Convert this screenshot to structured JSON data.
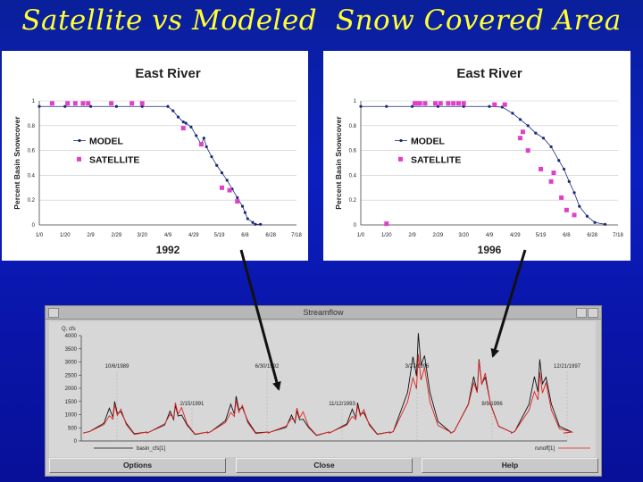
{
  "slide": {
    "title": "Satellite vs Modeled  Snow Covered Area",
    "colors": {
      "background": "#0b1fc0",
      "title": "#ffff33",
      "model": "#1a2a7a",
      "satellite": "#e040c8",
      "flow_observed": "#111111",
      "flow_model": "#e02020"
    }
  },
  "chart_data": [
    {
      "type": "scatter",
      "title": "East River",
      "xlabel": "1992",
      "ylabel": "Percent Basin Snowcover",
      "ylim": [
        0,
        1
      ],
      "y_ticks": [
        "0",
        "0.2",
        "0.4",
        "0.6",
        "0.8",
        "1"
      ],
      "x_ticks": [
        "1/0",
        "1/20",
        "2/9",
        "2/29",
        "3/20",
        "4/9",
        "4/29",
        "5/19",
        "6/8",
        "6/28",
        "7/18"
      ],
      "xlim_days": [
        0,
        200
      ],
      "grid": true,
      "legend": "left-middle",
      "series": [
        {
          "name": "MODEL",
          "marker": "dot",
          "x": [
            0,
            20,
            40,
            60,
            80,
            100,
            104,
            108,
            112,
            114,
            118,
            122,
            126,
            128,
            130,
            134,
            138,
            142,
            146,
            150,
            154,
            158,
            160,
            162,
            166,
            168,
            172
          ],
          "y": [
            0.955,
            0.955,
            0.955,
            0.955,
            0.955,
            0.955,
            0.92,
            0.87,
            0.83,
            0.82,
            0.79,
            0.72,
            0.65,
            0.7,
            0.63,
            0.55,
            0.48,
            0.42,
            0.36,
            0.29,
            0.22,
            0.15,
            0.1,
            0.05,
            0.02,
            0.005,
            0.005
          ]
        },
        {
          "name": "SATELLITE",
          "marker": "square",
          "x": [
            10,
            22,
            28,
            34,
            38,
            56,
            72,
            80,
            112,
            126,
            142,
            148,
            154
          ],
          "y": [
            0.98,
            0.98,
            0.98,
            0.98,
            0.98,
            0.98,
            0.98,
            0.98,
            0.78,
            0.65,
            0.3,
            0.28,
            0.19
          ]
        }
      ]
    },
    {
      "type": "scatter",
      "title": "East River",
      "xlabel": "1996",
      "ylabel": "Percent Basin Snowcover",
      "ylim": [
        0,
        1
      ],
      "y_ticks": [
        "0",
        "0.2",
        "0.4",
        "0.6",
        "0.8",
        "1"
      ],
      "x_ticks": [
        "1/0",
        "1/20",
        "2/9",
        "2/29",
        "3/20",
        "4/9",
        "4/29",
        "5/19",
        "6/8",
        "6/28",
        "7/18"
      ],
      "xlim_days": [
        0,
        200
      ],
      "grid": true,
      "legend": "left-middle",
      "series": [
        {
          "name": "MODEL",
          "marker": "dot",
          "x": [
            0,
            20,
            40,
            60,
            80,
            100,
            110,
            118,
            124,
            130,
            136,
            142,
            148,
            154,
            158,
            162,
            166,
            170,
            176,
            182,
            190
          ],
          "y": [
            0.955,
            0.955,
            0.955,
            0.955,
            0.955,
            0.955,
            0.95,
            0.9,
            0.85,
            0.8,
            0.74,
            0.7,
            0.63,
            0.52,
            0.45,
            0.35,
            0.26,
            0.15,
            0.07,
            0.02,
            0.005
          ]
        },
        {
          "name": "SATELLITE",
          "marker": "square",
          "x": [
            20,
            42,
            44,
            46,
            50,
            58,
            62,
            68,
            72,
            76,
            80,
            104,
            112,
            124,
            126,
            130,
            140,
            148,
            150,
            156,
            160,
            166
          ],
          "y": [
            0.01,
            0.98,
            0.98,
            0.98,
            0.98,
            0.98,
            0.98,
            0.98,
            0.98,
            0.98,
            0.98,
            0.97,
            0.97,
            0.7,
            0.75,
            0.6,
            0.45,
            0.35,
            0.42,
            0.22,
            0.12,
            0.08
          ]
        }
      ]
    },
    {
      "type": "line",
      "title": "Streamflow",
      "ylabel": "Q, cfs",
      "ylim": [
        0,
        4000
      ],
      "y_ticks": [
        "0",
        "500",
        "1000",
        "1500",
        "2000",
        "2500",
        "3000",
        "3500",
        "4000"
      ],
      "x_ticks": [
        "10/6/1989",
        "2/15/1991",
        "6/30/1992",
        "11/12/1993",
        "3/27/1995",
        "8/9/1996",
        "12/21/1997"
      ],
      "grid": false,
      "legend_labels": [
        "basin_cfs[1]",
        "runoff[1]"
      ],
      "peaks": [
        {
          "name": "basin_cfs[1]",
          "values": [
            1500,
            1350,
            1700,
            1150,
            1450,
            4100,
            3100,
            3100
          ]
        },
        {
          "name": "runoff[1]",
          "values": [
            1380,
            1450,
            1550,
            1250,
            1350,
            3300,
            3050,
            2600
          ]
        }
      ]
    }
  ],
  "streamflow_window": {
    "title": "Streamflow",
    "buttons": [
      "Options",
      "Close",
      "Help"
    ]
  }
}
